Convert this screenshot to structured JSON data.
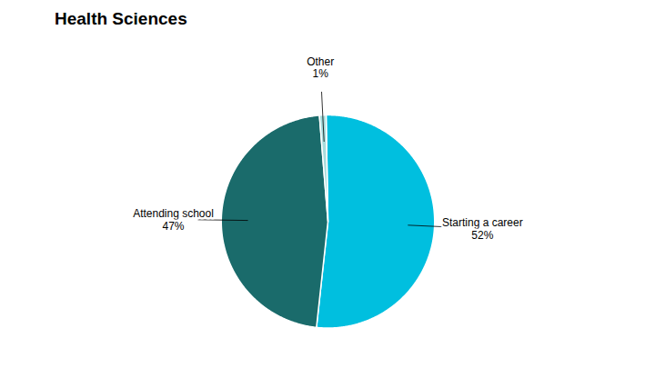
{
  "chart_data": {
    "type": "pie",
    "title": "Health Sciences",
    "categories": [
      "Starting a career",
      "Attending school",
      "Other"
    ],
    "values": [
      52,
      47,
      1
    ],
    "colors": [
      "#00BFDF",
      "#1A6B6B",
      "#A8DCDC"
    ],
    "data_labels": true,
    "value_labels": [
      "Starting a career\n52%",
      "Attending school\n47%",
      "Other\n1%"
    ]
  }
}
